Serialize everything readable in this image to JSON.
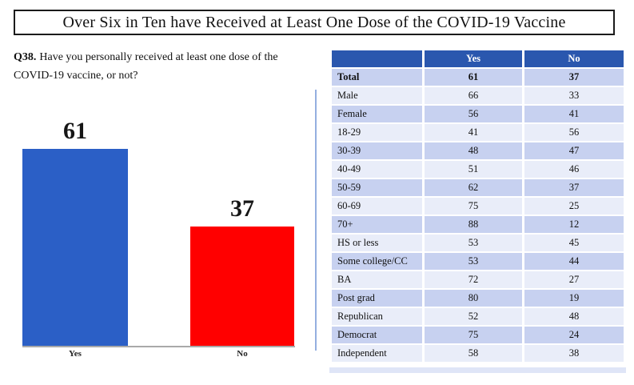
{
  "page_title": "Over Six in Ten have Received at Least One Dose of the COVID-19 Vaccine",
  "question": {
    "number": "Q38.",
    "text": "Have you personally received at least one dose of the COVID-19 vaccine, or not?"
  },
  "chart_data": {
    "type": "bar",
    "title": "",
    "categories": [
      "Yes",
      "No"
    ],
    "values": [
      61,
      37
    ],
    "bar_colors": [
      "#2b5fc6",
      "#ff0000"
    ],
    "ylim": [
      0,
      65
    ],
    "grid": false,
    "legend": false,
    "data_labels_shown": true
  },
  "table": {
    "columns": [
      "",
      "Yes",
      "No"
    ],
    "header_bg": "#2a57ae",
    "row_shade_a": "#c7d1f0",
    "row_shade_b": "#e9edf9",
    "rows": [
      {
        "label": "Total",
        "yes": "61",
        "no": "37",
        "bold": true
      },
      {
        "label": "Male",
        "yes": "66",
        "no": "33"
      },
      {
        "label": "Female",
        "yes": "56",
        "no": "41"
      },
      {
        "label": "18-29",
        "yes": "41",
        "no": "56"
      },
      {
        "label": "30-39",
        "yes": "48",
        "no": "47"
      },
      {
        "label": "40-49",
        "yes": "51",
        "no": "46"
      },
      {
        "label": "50-59",
        "yes": "62",
        "no": "37"
      },
      {
        "label": "60-69",
        "yes": "75",
        "no": "25"
      },
      {
        "label": "70+",
        "yes": "88",
        "no": "12"
      },
      {
        "label": "HS or less",
        "yes": "53",
        "no": "45"
      },
      {
        "label": "Some college/CC",
        "yes": "53",
        "no": "44"
      },
      {
        "label": "BA",
        "yes": "72",
        "no": "27"
      },
      {
        "label": "Post grad",
        "yes": "80",
        "no": "19"
      },
      {
        "label": "Republican",
        "yes": "52",
        "no": "48"
      },
      {
        "label": "Democrat",
        "yes": "75",
        "no": "24"
      },
      {
        "label": "Independent",
        "yes": "58",
        "no": "38"
      }
    ]
  }
}
